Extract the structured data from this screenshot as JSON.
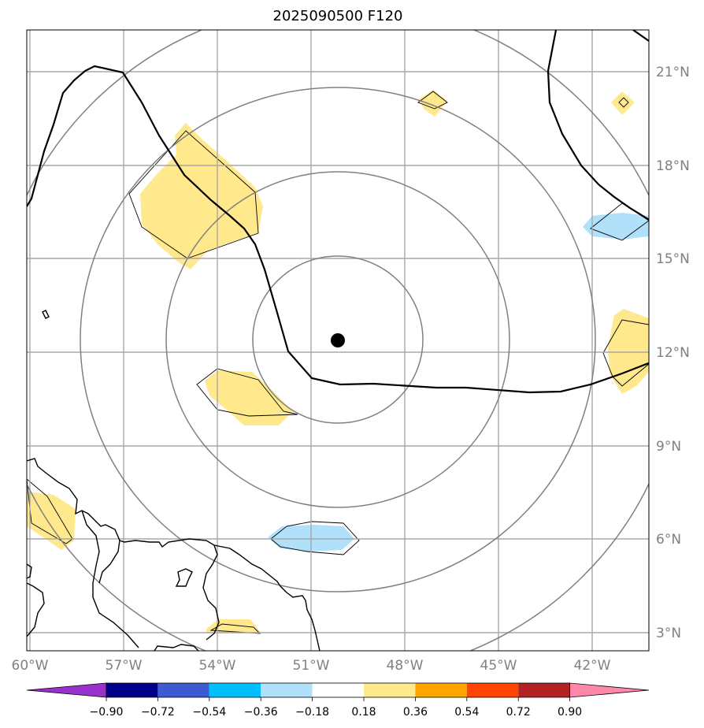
{
  "title": "2025090500 F120",
  "map": {
    "lon_labels": [
      "60°W",
      "57°W",
      "54°W",
      "51°W",
      "48°W",
      "45°W",
      "42°W"
    ],
    "lat_labels": [
      "21°N",
      "18°N",
      "15°N",
      "12°N",
      "9°N",
      "6°N",
      "3°N"
    ],
    "center_marker": {
      "lon": -50.9,
      "lat": 12.4
    },
    "range_rings": 4,
    "gridlines": true
  },
  "colorbar": {
    "labels": [
      "−0.90",
      "−0.72",
      "−0.54",
      "−0.36",
      "−0.18",
      "0.18",
      "0.36",
      "0.54",
      "0.72",
      "0.90"
    ],
    "colors": [
      "#9932cc",
      "#00008b",
      "#3c5ad2",
      "#00bfff",
      "#b0e0fa",
      "#ffffff",
      "#ffe98c",
      "#ffa500",
      "#ff4500",
      "#b22222",
      "#ff88aa"
    ]
  },
  "colors": {
    "positive_fill": "#ffe98c",
    "negative_fill": "#b0e0fa",
    "ring": "#808080",
    "grid": "#a8a8a8",
    "track": "#000000"
  }
}
